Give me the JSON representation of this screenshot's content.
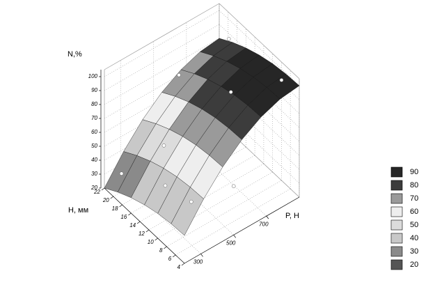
{
  "chart_data": {
    "type": "surface",
    "z_label": "N,%",
    "y_label": "H, мм",
    "x_label": "P, Н",
    "x": [
      200,
      317,
      433,
      550,
      667,
      783,
      900
    ],
    "y": [
      22,
      19,
      16,
      13,
      10,
      7,
      4
    ],
    "z": [
      [
        20,
        38.3,
        53.3,
        65,
        73.3,
        78.3,
        80
      ],
      [
        26.1,
        44.4,
        59.4,
        71.1,
        79.4,
        84.4,
        86.1
      ],
      [
        31.1,
        49.4,
        64.4,
        76.1,
        84.4,
        89.4,
        91.1
      ],
      [
        35,
        53.3,
        68.3,
        80,
        88.3,
        93.3,
        95
      ],
      [
        37.8,
        56.1,
        71.1,
        82.8,
        91.1,
        96.1,
        97.8
      ],
      [
        39.4,
        57.7,
        72.7,
        84.4,
        92.7,
        97.7,
        99.4
      ],
      [
        40,
        58.3,
        73.3,
        85,
        93.3,
        98.3,
        100
      ]
    ],
    "points": {
      "x": [
        250,
        300,
        400,
        350,
        500,
        600,
        700,
        850,
        900
      ],
      "y": [
        20,
        12,
        16,
        8,
        4,
        20,
        12,
        18,
        8
      ],
      "z": [
        33,
        45,
        55,
        42,
        55,
        80,
        85,
        95,
        92
      ]
    },
    "xlim": [
      200,
      900
    ],
    "xticks": [
      300,
      500,
      700
    ],
    "ylim": [
      4,
      22
    ],
    "yticks": [
      22,
      20,
      18,
      16,
      14,
      12,
      10,
      8,
      6,
      4
    ],
    "zlim": [
      20,
      105
    ],
    "zticks": [
      20,
      30,
      40,
      50,
      60,
      70,
      80,
      90,
      100
    ],
    "grid": true,
    "legend": {
      "levels": [
        90,
        80,
        70,
        60,
        50,
        40,
        30,
        20
      ],
      "colors": [
        "#262626",
        "#3c3c3c",
        "#9a9a9a",
        "#eeeeee",
        "#dcdcdc",
        "#c8c8c8",
        "#8a8a8a",
        "#555555"
      ]
    }
  }
}
